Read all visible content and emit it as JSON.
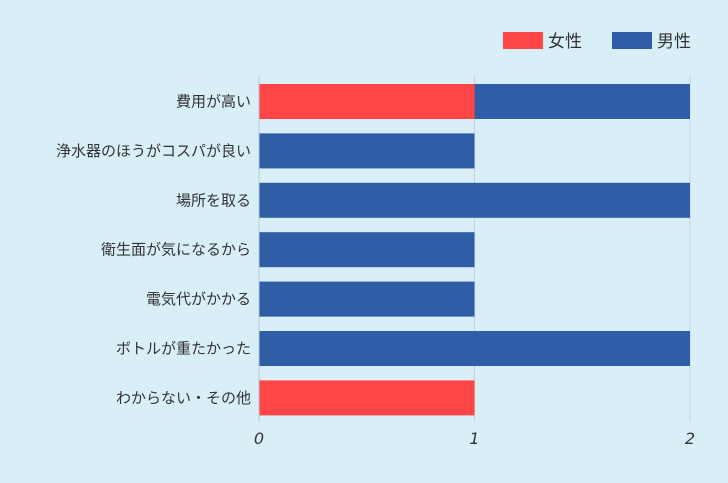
{
  "chart_data": {
    "type": "bar",
    "orientation": "horizontal",
    "stacked": true,
    "categories": [
      "費用が高い",
      "浄水器のほうがコスパが良い",
      "場所を取る",
      "衛生面が気になるから",
      "電気代がかかる",
      "ボトルが重たかった",
      "わからない・その他"
    ],
    "series": [
      {
        "name": "女性",
        "color": "#ff4545",
        "values": [
          1,
          0,
          0,
          0,
          0,
          0,
          1
        ]
      },
      {
        "name": "男性",
        "color": "#2f5ea6",
        "values": [
          1,
          1,
          2,
          1,
          1,
          2,
          0
        ]
      }
    ],
    "xlim": [
      0,
      2
    ],
    "xticks": [
      "0",
      "1",
      "2"
    ],
    "grid": true,
    "legend_position": "top-right"
  }
}
